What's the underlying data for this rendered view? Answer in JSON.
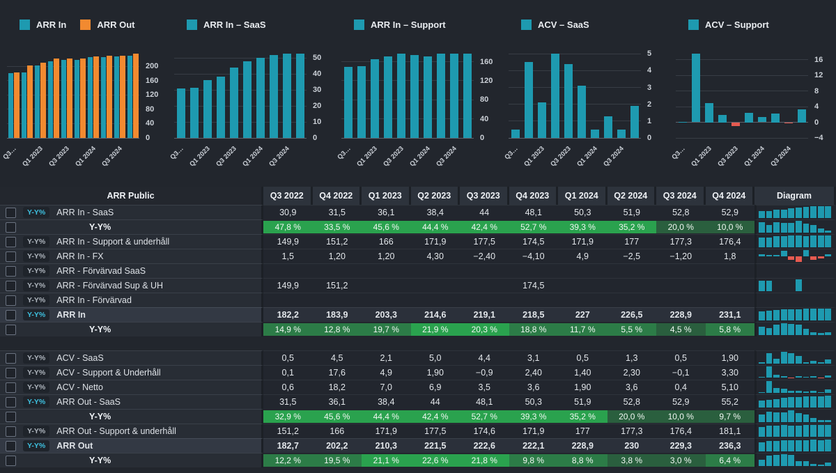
{
  "colors": {
    "teal": "#1e9ab0",
    "orange": "#f28a30",
    "negative_red": "#e65a50",
    "green_bright": "#2aa24e",
    "green_medium": "#2c7c47",
    "green_dark": "#2a5f3e",
    "active_cyan": "#3ec1e0",
    "background": "#22262d"
  },
  "charts": [
    {
      "slug": "arr-in-out",
      "type": "bar",
      "legend": [
        {
          "label": "ARR In",
          "color": "#1e9ab0"
        },
        {
          "label": "ARR Out",
          "color": "#f28a30"
        }
      ],
      "series": [
        {
          "name": "ARR In",
          "color": "#1e9ab0",
          "values": [
            182.2,
            183.9,
            203.3,
            214.6,
            219.1,
            218.5,
            227,
            226.5,
            228.9,
            231.1
          ]
        },
        {
          "name": "ARR Out",
          "color": "#f28a30",
          "values": [
            182.7,
            202.2,
            210.3,
            221.5,
            222.6,
            222.1,
            228.9,
            230,
            229.3,
            236.3
          ]
        }
      ],
      "ymin": 0,
      "ymax": 238,
      "ticks_v": [
        200,
        160,
        120,
        80,
        40,
        0
      ],
      "ticks_l": [
        "200",
        "160",
        "120",
        "80",
        "40",
        "0"
      ],
      "x_tick_labels": [
        "Q3…",
        "Q1 2023",
        "Q3 2023",
        "Q1 2024",
        "Q3 2024"
      ]
    },
    {
      "slug": "arr-in-saas",
      "type": "bar",
      "legend": [
        {
          "label": "ARR In – SaaS",
          "color": "#1e9ab0"
        }
      ],
      "series": [
        {
          "name": "ARR In – SaaS",
          "color": "#1e9ab0",
          "values": [
            30.9,
            31.5,
            36.1,
            38.4,
            44,
            48.1,
            50.3,
            51.9,
            52.8,
            52.9
          ]
        }
      ],
      "ymin": 0,
      "ymax": 53.2,
      "ticks_v": [
        50,
        40,
        30,
        20,
        10,
        0
      ],
      "ticks_l": [
        "50",
        "40",
        "30",
        "20",
        "10",
        "0"
      ],
      "x_tick_labels": [
        "Q3…",
        "Q1 2023",
        "Q3 2023",
        "Q1 2024",
        "Q3 2024"
      ]
    },
    {
      "slug": "arr-in-support",
      "type": "bar",
      "legend": [
        {
          "label": "ARR In – Support",
          "color": "#1e9ab0"
        }
      ],
      "series": [
        {
          "name": "ARR In – Support",
          "color": "#1e9ab0",
          "values": [
            149.9,
            151.2,
            166,
            171.9,
            177.5,
            174.5,
            171.9,
            177,
            177.3,
            176.4
          ]
        }
      ],
      "ymin": 0,
      "ymax": 178.5,
      "ticks_v": [
        160,
        120,
        80,
        40,
        0
      ],
      "ticks_l": [
        "160",
        "120",
        "80",
        "40",
        "0"
      ],
      "x_tick_labels": [
        "Q3…",
        "Q1 2023",
        "Q3 2023",
        "Q1 2024",
        "Q3 2024"
      ]
    },
    {
      "slug": "acv-saas",
      "type": "bar",
      "legend": [
        {
          "label": "ACV – SaaS",
          "color": "#1e9ab0"
        }
      ],
      "series": [
        {
          "name": "ACV – SaaS",
          "color": "#1e9ab0",
          "values": [
            0.5,
            4.5,
            2.1,
            5.0,
            4.4,
            3.1,
            0.5,
            1.3,
            0.5,
            1.9
          ]
        }
      ],
      "ymin": 0,
      "ymax": 5.05,
      "ticks_v": [
        5,
        4,
        3,
        2,
        1,
        0
      ],
      "ticks_l": [
        "5",
        "4",
        "3",
        "2",
        "1",
        "0"
      ],
      "x_tick_labels": [
        "Q3…",
        "Q1 2023",
        "Q3 2023",
        "Q1 2024",
        "Q3 2024"
      ]
    },
    {
      "slug": "acv-support",
      "type": "bar",
      "legend": [
        {
          "label": "ACV – Support",
          "color": "#1e9ab0"
        }
      ],
      "series": [
        {
          "name": "ACV – Support",
          "color": "#1e9ab0",
          "values": [
            0.1,
            17.6,
            4.9,
            1.9,
            -0.9,
            2.4,
            1.4,
            2.3,
            -0.1,
            3.3
          ]
        }
      ],
      "ymin": -4,
      "ymax": 17.7,
      "ticks_v": [
        16,
        12,
        8,
        4,
        0,
        -4
      ],
      "ticks_l": [
        "16",
        "12",
        "8",
        "4",
        "0",
        "−4"
      ],
      "x_tick_labels": [
        "Q3…",
        "Q1 2023",
        "Q3 2023",
        "Q1 2024",
        "Q3 2024"
      ]
    }
  ],
  "table": {
    "title": "ARR Public",
    "yy_badge": "Y-Y%",
    "diagram_label": "Diagram",
    "columns": [
      "Q3 2022",
      "Q4 2022",
      "Q1 2023",
      "Q2 2023",
      "Q3 2023",
      "Q4 2023",
      "Q1 2024",
      "Q2 2024",
      "Q3 2024",
      "Q4 2024"
    ],
    "rows": [
      {
        "type": "data",
        "label": "ARR In - SaaS",
        "yy_active": true,
        "bold": false,
        "values": [
          "30,9",
          "31,5",
          "36,1",
          "38,4",
          "44",
          "48,1",
          "50,3",
          "51,9",
          "52,8",
          "52,9"
        ]
      },
      {
        "type": "yy",
        "label": "Y-Y%",
        "values": [
          "47,8 %",
          "33,5 %",
          "45,6 %",
          "44,4 %",
          "42,4 %",
          "52,7 %",
          "39,3 %",
          "35,2 %",
          "20,0 %",
          "10,0 %"
        ],
        "shades": [
          "b",
          "b",
          "b",
          "b",
          "b",
          "b",
          "b",
          "b",
          "d",
          "d"
        ]
      },
      {
        "type": "data",
        "label": "ARR In - Support & underhåll",
        "yy_active": false,
        "bold": false,
        "values": [
          "149,9",
          "151,2",
          "166",
          "171,9",
          "177,5",
          "174,5",
          "171,9",
          "177",
          "177,3",
          "176,4"
        ]
      },
      {
        "type": "data",
        "label": "ARR In - FX",
        "yy_active": false,
        "bold": false,
        "values": [
          "1,5",
          "1,20",
          "1,20",
          "4,30",
          "−2,40",
          "−4,10",
          "4,9",
          "−2,5",
          "−1,20",
          "1,8"
        ]
      },
      {
        "type": "data",
        "label": "ARR - Förvärvad SaaS",
        "yy_active": false,
        "bold": false,
        "values": [
          "",
          "",
          "",
          "",
          "",
          "",
          "",
          "",
          "",
          ""
        ]
      },
      {
        "type": "data",
        "label": "ARR - Förvärvad Sup & UH",
        "yy_active": false,
        "bold": false,
        "values": [
          "149,9",
          "151,2",
          "",
          "",
          "",
          "174,5",
          "",
          "",
          "",
          ""
        ]
      },
      {
        "type": "data",
        "label": "ARR In - Förvärvad",
        "yy_active": false,
        "bold": false,
        "values": [
          "",
          "",
          "",
          "",
          "",
          "",
          "",
          "",
          "",
          ""
        ]
      },
      {
        "type": "data",
        "label": "ARR In",
        "yy_active": true,
        "bold": true,
        "values": [
          "182,2",
          "183,9",
          "203,3",
          "214,6",
          "219,1",
          "218,5",
          "227",
          "226,5",
          "228,9",
          "231,1"
        ]
      },
      {
        "type": "yy",
        "label": "Y-Y%",
        "values": [
          "14,9 %",
          "12,8 %",
          "19,7 %",
          "21,9 %",
          "20,3 %",
          "18,8 %",
          "11,7 %",
          "5,5 %",
          "4,5 %",
          "5,8 %"
        ],
        "shades": [
          "m",
          "m",
          "m",
          "b",
          "b",
          "m",
          "m",
          "m",
          "d",
          "m"
        ]
      },
      {
        "type": "gap"
      },
      {
        "type": "data",
        "label": "ACV - SaaS",
        "yy_active": false,
        "bold": false,
        "values": [
          "0,5",
          "4,5",
          "2,1",
          "5,0",
          "4,4",
          "3,1",
          "0,5",
          "1,3",
          "0,5",
          "1,90"
        ]
      },
      {
        "type": "data",
        "label": "ACV - Support & Underhåll",
        "yy_active": false,
        "bold": false,
        "values": [
          "0,1",
          "17,6",
          "4,9",
          "1,90",
          "−0,9",
          "2,40",
          "1,40",
          "2,30",
          "−0,1",
          "3,30"
        ]
      },
      {
        "type": "data",
        "label": "ACV - Netto",
        "yy_active": false,
        "bold": false,
        "values": [
          "0,6",
          "18,2",
          "7,0",
          "6,9",
          "3,5",
          "3,6",
          "1,90",
          "3,6",
          "0,4",
          "5,10"
        ]
      },
      {
        "type": "data",
        "label": "ARR Out - SaaS",
        "yy_active": true,
        "bold": false,
        "values": [
          "31,5",
          "36,1",
          "38,4",
          "44",
          "48,1",
          "50,3",
          "51,9",
          "52,8",
          "52,9",
          "55,2"
        ]
      },
      {
        "type": "yy",
        "label": "Y-Y%",
        "values": [
          "32,9 %",
          "45,6 %",
          "44,4 %",
          "42,4 %",
          "52,7 %",
          "39,3 %",
          "35,2 %",
          "20,0 %",
          "10,0 %",
          "9,7 %"
        ],
        "shades": [
          "b",
          "b",
          "b",
          "b",
          "b",
          "b",
          "b",
          "d",
          "d",
          "d"
        ]
      },
      {
        "type": "data",
        "label": "ARR Out - Support & underhåll",
        "yy_active": false,
        "bold": false,
        "values": [
          "151,2",
          "166",
          "171,9",
          "177,5",
          "174,6",
          "171,9",
          "177",
          "177,3",
          "176,4",
          "181,1"
        ]
      },
      {
        "type": "data",
        "label": "ARR Out",
        "yy_active": true,
        "bold": true,
        "values": [
          "182,7",
          "202,2",
          "210,3",
          "221,5",
          "222,6",
          "222,1",
          "228,9",
          "230",
          "229,3",
          "236,3"
        ]
      },
      {
        "type": "yy",
        "label": "Y-Y%",
        "values": [
          "12,2 %",
          "19,5 %",
          "21,1 %",
          "22,6 %",
          "21,8 %",
          "9,8 %",
          "8,8 %",
          "3,8 %",
          "3,0 %",
          "6,4 %"
        ],
        "shades": [
          "m",
          "m",
          "b",
          "b",
          "b",
          "m",
          "m",
          "d",
          "d",
          "m"
        ]
      }
    ]
  }
}
